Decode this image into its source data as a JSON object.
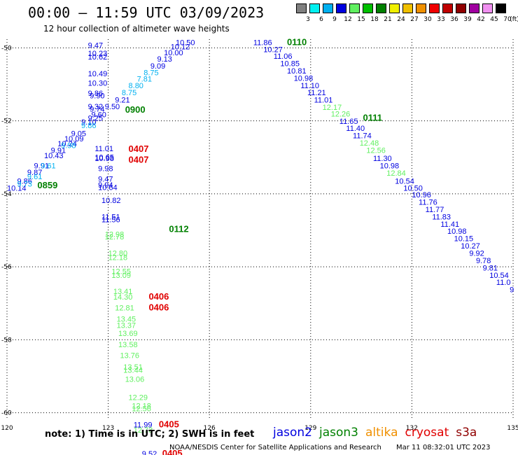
{
  "header": {
    "title": "00:00 — 11:59 UTC 03/09/2023",
    "subtitle": "12 hour collection of altimeter wave heights"
  },
  "colorbar": {
    "unit": "(ft)",
    "labels": [
      "3",
      "6",
      "9",
      "12",
      "15",
      "18",
      "21",
      "24",
      "27",
      "30",
      "33",
      "36",
      "39",
      "42",
      "45",
      "70"
    ],
    "colors": [
      "#808080",
      "#00f0f0",
      "#00b0f0",
      "#0000e0",
      "#60f060",
      "#00c000",
      "#008000",
      "#f0f000",
      "#f0c000",
      "#f09000",
      "#f00000",
      "#c00000",
      "#900000",
      "#a000a0",
      "#f090f0",
      "#000000"
    ]
  },
  "map": {
    "x_axis": {
      "range": [
        120,
        135
      ],
      "ticks": [
        "120",
        "123",
        "126",
        "129",
        "132",
        "135"
      ]
    },
    "y_axis": {
      "range": [
        -60.2,
        -49.8
      ],
      "ticks": [
        "-50",
        "-52",
        "-54",
        "-56",
        "-58",
        "-60"
      ]
    },
    "grid": "dotted"
  },
  "observations": [
    {
      "lon": 122.4,
      "lat": -50.0,
      "text": "9.47",
      "color": "#0000e0"
    },
    {
      "lon": 122.4,
      "lat": -50.22,
      "text": "10.23",
      "color": "#0000e0"
    },
    {
      "lon": 122.4,
      "lat": -50.32,
      "text": "10.62",
      "color": "#0000e0"
    },
    {
      "lon": 122.4,
      "lat": -50.78,
      "text": "10.49",
      "color": "#0000e0"
    },
    {
      "lon": 122.4,
      "lat": -51.04,
      "text": "10.30",
      "color": "#0000e0"
    },
    {
      "lon": 122.4,
      "lat": -51.32,
      "text": "9.86",
      "color": "#0000e0"
    },
    {
      "lon": 122.45,
      "lat": -51.38,
      "text": "9.90",
      "color": "#0000e0"
    },
    {
      "lon": 122.4,
      "lat": -51.68,
      "text": "9.32",
      "color": "#0000e0"
    },
    {
      "lon": 122.45,
      "lat": -51.75,
      "text": "9.74",
      "color": "#0000e0"
    },
    {
      "lon": 122.5,
      "lat": -51.9,
      "text": "9.60",
      "color": "#0000e0"
    },
    {
      "lon": 122.4,
      "lat": -52.0,
      "text": "9.25",
      "color": "#0000e0"
    },
    {
      "lon": 122.2,
      "lat": -52.1,
      "text": "9.10",
      "color": "#0000e0"
    },
    {
      "lon": 121.9,
      "lat": -52.42,
      "text": "9.05",
      "color": "#0000e0"
    },
    {
      "lon": 121.7,
      "lat": -52.56,
      "text": "10.09",
      "color": "#0000e0"
    },
    {
      "lon": 121.5,
      "lat": -52.7,
      "text": "10.24",
      "color": "#0000e0"
    },
    {
      "lon": 121.3,
      "lat": -52.88,
      "text": "9.91",
      "color": "#0000e0"
    },
    {
      "lon": 121.1,
      "lat": -53.02,
      "text": "10.43",
      "color": "#0000e0"
    },
    {
      "lon": 120.8,
      "lat": -53.3,
      "text": "9.91",
      "color": "#0000e0"
    },
    {
      "lon": 120.6,
      "lat": -53.48,
      "text": "9.87",
      "color": "#0000e0"
    },
    {
      "lon": 120.3,
      "lat": -53.72,
      "text": "9.86",
      "color": "#0000e0"
    },
    {
      "lon": 120.0,
      "lat": -53.92,
      "text": "10.14",
      "color": "#0000e0"
    },
    {
      "lon": 120.3,
      "lat": -53.8,
      "text": "9.73",
      "color": "#00b0f0"
    },
    {
      "lon": 120.6,
      "lat": -53.6,
      "text": "9.61",
      "color": "#00b0f0"
    },
    {
      "lon": 121.0,
      "lat": -53.3,
      "text": "9.61",
      "color": "#00b0f0"
    },
    {
      "lon": 121.6,
      "lat": -52.75,
      "text": "9.98",
      "color": "#00b0f0"
    },
    {
      "lon": 122.2,
      "lat": -52.2,
      "text": "9.86",
      "color": "#00b0f0"
    },
    {
      "lon": 122.9,
      "lat": -51.68,
      "text": "9.50",
      "color": "#0000e0"
    },
    {
      "lon": 123.2,
      "lat": -51.5,
      "text": "9.21",
      "color": "#0000e0"
    },
    {
      "lon": 123.4,
      "lat": -51.3,
      "text": "8.75",
      "color": "#00b0f0"
    },
    {
      "lon": 123.6,
      "lat": -51.1,
      "text": "8.80",
      "color": "#00b0f0"
    },
    {
      "lon": 123.85,
      "lat": -50.92,
      "text": "7.81",
      "color": "#00b0f0"
    },
    {
      "lon": 124.05,
      "lat": -50.75,
      "text": "8.75",
      "color": "#00b0f0"
    },
    {
      "lon": 124.25,
      "lat": -50.57,
      "text": "9.09",
      "color": "#0000e0"
    },
    {
      "lon": 124.45,
      "lat": -50.38,
      "text": "9.13",
      "color": "#0000e0"
    },
    {
      "lon": 124.65,
      "lat": -50.2,
      "text": "10.00",
      "color": "#0000e0"
    },
    {
      "lon": 124.85,
      "lat": -50.04,
      "text": "10.12",
      "color": "#0000e0"
    },
    {
      "lon": 125.0,
      "lat": -49.92,
      "text": "10.50",
      "color": "#0000e0"
    },
    {
      "lon": 122.6,
      "lat": -52.83,
      "text": "11.01",
      "color": "#0000e0"
    },
    {
      "lon": 122.6,
      "lat": -53.07,
      "text": "10.65",
      "color": "#0000e0"
    },
    {
      "lon": 122.6,
      "lat": -53.1,
      "text": "10.98",
      "color": "#0000e0"
    },
    {
      "lon": 122.7,
      "lat": -53.38,
      "text": "9.98",
      "color": "#0000e0"
    },
    {
      "lon": 122.7,
      "lat": -53.67,
      "text": "9.47",
      "color": "#0000e0"
    },
    {
      "lon": 122.7,
      "lat": -53.83,
      "text": "9.94",
      "color": "#0000e0"
    },
    {
      "lon": 122.7,
      "lat": -53.9,
      "text": "10.64",
      "color": "#0000e0"
    },
    {
      "lon": 122.8,
      "lat": -54.25,
      "text": "10.82",
      "color": "#0000e0"
    },
    {
      "lon": 122.8,
      "lat": -54.7,
      "text": "11.51",
      "color": "#0000e0"
    },
    {
      "lon": 122.8,
      "lat": -54.78,
      "text": "11.56",
      "color": "#0000e0"
    },
    {
      "lon": 122.9,
      "lat": -55.18,
      "text": "12.98",
      "color": "#60f060"
    },
    {
      "lon": 122.9,
      "lat": -55.25,
      "text": "12.78",
      "color": "#60f060"
    },
    {
      "lon": 123.0,
      "lat": -55.7,
      "text": "12.80",
      "color": "#60f060"
    },
    {
      "lon": 123.0,
      "lat": -55.82,
      "text": "12.18",
      "color": "#60f060"
    },
    {
      "lon": 123.1,
      "lat": -56.2,
      "text": "12.55",
      "color": "#60f060"
    },
    {
      "lon": 123.1,
      "lat": -56.3,
      "text": "13.09",
      "color": "#60f060"
    },
    {
      "lon": 123.15,
      "lat": -56.75,
      "text": "13.41",
      "color": "#60f060"
    },
    {
      "lon": 123.15,
      "lat": -56.9,
      "text": "14.30",
      "color": "#60f060"
    },
    {
      "lon": 123.2,
      "lat": -57.2,
      "text": "12.81",
      "color": "#60f060"
    },
    {
      "lon": 123.25,
      "lat": -57.5,
      "text": "13.45",
      "color": "#60f060"
    },
    {
      "lon": 123.25,
      "lat": -57.68,
      "text": "13.37",
      "color": "#60f060"
    },
    {
      "lon": 123.3,
      "lat": -57.9,
      "text": "13.69",
      "color": "#60f060"
    },
    {
      "lon": 123.3,
      "lat": -58.2,
      "text": "13.58",
      "color": "#60f060"
    },
    {
      "lon": 123.35,
      "lat": -58.5,
      "text": "13.76",
      "color": "#60f060"
    },
    {
      "lon": 123.45,
      "lat": -58.82,
      "text": "13.51",
      "color": "#60f060"
    },
    {
      "lon": 123.45,
      "lat": -58.9,
      "text": "13.44",
      "color": "#60f060"
    },
    {
      "lon": 123.5,
      "lat": -59.15,
      "text": "13.06",
      "color": "#60f060"
    },
    {
      "lon": 123.6,
      "lat": -59.65,
      "text": "12.29",
      "color": "#60f060"
    },
    {
      "lon": 123.7,
      "lat": -59.88,
      "text": "12.18",
      "color": "#60f060"
    },
    {
      "lon": 123.7,
      "lat": -59.96,
      "text": "12.56",
      "color": "#60f060"
    },
    {
      "lon": 123.75,
      "lat": -60.4,
      "text": "11.99",
      "color": "#0000e0"
    },
    {
      "lon": 123.75,
      "lat": -60.55,
      "text": "12.73",
      "color": "#60f060"
    },
    {
      "lon": 124.0,
      "lat": -61.2,
      "text": "9.52",
      "color": "#0000e0"
    },
    {
      "lon": 127.3,
      "lat": -49.92,
      "text": "11.86",
      "color": "#0000e0"
    },
    {
      "lon": 127.6,
      "lat": -50.12,
      "text": "10.27",
      "color": "#0000e0"
    },
    {
      "lon": 127.9,
      "lat": -50.3,
      "text": "11.06",
      "color": "#0000e0"
    },
    {
      "lon": 128.1,
      "lat": -50.5,
      "text": "10.85",
      "color": "#0000e0"
    },
    {
      "lon": 128.3,
      "lat": -50.7,
      "text": "10.81",
      "color": "#0000e0"
    },
    {
      "lon": 128.5,
      "lat": -50.9,
      "text": "10.98",
      "color": "#0000e0"
    },
    {
      "lon": 128.7,
      "lat": -51.1,
      "text": "11.10",
      "color": "#0000e0"
    },
    {
      "lon": 128.9,
      "lat": -51.3,
      "text": "11.21",
      "color": "#0000e0"
    },
    {
      "lon": 129.1,
      "lat": -51.5,
      "text": "11.01",
      "color": "#0000e0"
    },
    {
      "lon": 129.35,
      "lat": -51.7,
      "text": "12.17",
      "color": "#60f060"
    },
    {
      "lon": 129.6,
      "lat": -51.88,
      "text": "12.26",
      "color": "#60f060"
    },
    {
      "lon": 129.85,
      "lat": -52.08,
      "text": "11.65",
      "color": "#0000e0"
    },
    {
      "lon": 130.05,
      "lat": -52.28,
      "text": "11.40",
      "color": "#0000e0"
    },
    {
      "lon": 130.25,
      "lat": -52.48,
      "text": "11.74",
      "color": "#0000e0"
    },
    {
      "lon": 130.45,
      "lat": -52.68,
      "text": "12.48",
      "color": "#60f060"
    },
    {
      "lon": 130.65,
      "lat": -52.88,
      "text": "12.56",
      "color": "#60f060"
    },
    {
      "lon": 130.85,
      "lat": -53.1,
      "text": "11.30",
      "color": "#0000e0"
    },
    {
      "lon": 131.05,
      "lat": -53.3,
      "text": "10.98",
      "color": "#0000e0"
    },
    {
      "lon": 131.25,
      "lat": -53.5,
      "text": "12.84",
      "color": "#60f060"
    },
    {
      "lon": 131.5,
      "lat": -53.72,
      "text": "10.54",
      "color": "#0000e0"
    },
    {
      "lon": 131.75,
      "lat": -53.92,
      "text": "10.50",
      "color": "#0000e0"
    },
    {
      "lon": 132.0,
      "lat": -54.1,
      "text": "10.96",
      "color": "#0000e0"
    },
    {
      "lon": 132.2,
      "lat": -54.3,
      "text": "11.76",
      "color": "#0000e0"
    },
    {
      "lon": 132.4,
      "lat": -54.5,
      "text": "11.77",
      "color": "#0000e0"
    },
    {
      "lon": 132.6,
      "lat": -54.7,
      "text": "11.83",
      "color": "#0000e0"
    },
    {
      "lon": 132.85,
      "lat": -54.9,
      "text": "11.41",
      "color": "#0000e0"
    },
    {
      "lon": 133.05,
      "lat": -55.1,
      "text": "10.98",
      "color": "#0000e0"
    },
    {
      "lon": 133.25,
      "lat": -55.3,
      "text": "10.15",
      "color": "#0000e0"
    },
    {
      "lon": 133.45,
      "lat": -55.5,
      "text": "10.27",
      "color": "#0000e0"
    },
    {
      "lon": 133.7,
      "lat": -55.7,
      "text": "9.92",
      "color": "#0000e0"
    },
    {
      "lon": 133.9,
      "lat": -55.9,
      "text": "9.78",
      "color": "#0000e0"
    },
    {
      "lon": 134.1,
      "lat": -56.1,
      "text": "9.81",
      "color": "#0000e0"
    },
    {
      "lon": 134.3,
      "lat": -56.3,
      "text": "10.54",
      "color": "#0000e0"
    },
    {
      "lon": 134.5,
      "lat": -56.5,
      "text": "11.0",
      "color": "#0000e0"
    },
    {
      "lon": 134.9,
      "lat": -56.7,
      "text": "9",
      "color": "#0000e0"
    }
  ],
  "time_labels": [
    {
      "lon": 128.3,
      "lat": -49.92,
      "text": "0110",
      "color": "#008000"
    },
    {
      "lon": 123.5,
      "lat": -51.78,
      "text": "0900",
      "color": "#008000"
    },
    {
      "lon": 130.55,
      "lat": -52.0,
      "text": "0111",
      "color": "#008000"
    },
    {
      "lon": 120.9,
      "lat": -53.85,
      "text": "0859",
      "color": "#008000"
    },
    {
      "lon": 124.8,
      "lat": -55.05,
      "text": "0112",
      "color": "#008000"
    },
    {
      "lon": 123.6,
      "lat": -52.85,
      "text": "0407",
      "color": "#e00000"
    },
    {
      "lon": 123.6,
      "lat": -53.15,
      "text": "0407",
      "color": "#e00000"
    },
    {
      "lon": 124.2,
      "lat": -56.9,
      "text": "0406",
      "color": "#e00000"
    },
    {
      "lon": 124.2,
      "lat": -57.2,
      "text": "0406",
      "color": "#e00000"
    },
    {
      "lon": 124.5,
      "lat": -60.4,
      "text": "0405",
      "color": "#e00000"
    },
    {
      "lon": 124.6,
      "lat": -61.2,
      "text": "0405",
      "color": "#e00000"
    }
  ],
  "note": "note: 1) Time is in UTC; 2) SWH is in feet",
  "legend": [
    {
      "name": "jason2",
      "color": "#0000e0"
    },
    {
      "name": "jason3",
      "color": "#008000"
    },
    {
      "name": "altika",
      "color": "#f09000"
    },
    {
      "name": "cryosat",
      "color": "#e00000"
    },
    {
      "name": "s3a",
      "color": "#900000"
    }
  ],
  "footer": {
    "credit": "NOAA/NESDIS Center for Satellite Applications and Research",
    "timestamp": "Mar 11 08:32:01 UTC 2023"
  }
}
